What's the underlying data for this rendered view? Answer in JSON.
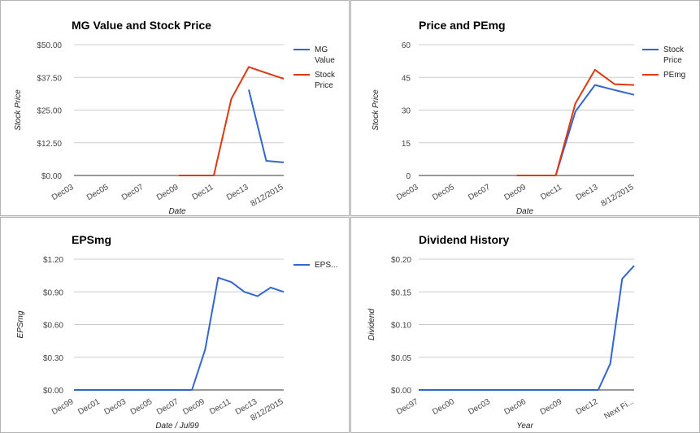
{
  "chart_data": [
    {
      "type": "line",
      "title": "MG Value and Stock Price",
      "xlabel": "Date",
      "ylabel": "Stock Price",
      "x_ticks": [
        "Dec03",
        "Dec05",
        "Dec07",
        "Dec09",
        "Dec11",
        "Dec13",
        "8/12/2015"
      ],
      "y_ticks": [
        "$0.00",
        "$12.50",
        "$25.00",
        "$37.50",
        "$50.00"
      ],
      "ylim": [
        0,
        50
      ],
      "grid": true,
      "legend": "right",
      "series": [
        {
          "name": "MG Value",
          "color": "#3366cc",
          "points": [
            [
              10,
              32.8
            ],
            [
              11,
              5.6
            ],
            [
              12,
              5.0
            ]
          ]
        },
        {
          "name": "Stock Price",
          "color": "#dc3912",
          "points": [
            [
              6,
              0
            ],
            [
              7,
              0
            ],
            [
              8,
              0
            ],
            [
              9,
              29.3
            ],
            [
              10,
              41.5
            ],
            [
              11,
              39.2
            ],
            [
              12,
              37.0
            ]
          ]
        }
      ],
      "x_max": 12
    },
    {
      "type": "line",
      "title": "Price and PEmg",
      "xlabel": "Date",
      "ylabel": "Stock Price",
      "x_ticks": [
        "Dec03",
        "Dec05",
        "Dec07",
        "Dec09",
        "Dec11",
        "Dec13",
        "8/12/2015"
      ],
      "y_ticks": [
        "0",
        "15",
        "30",
        "45",
        "60"
      ],
      "ylim": [
        0,
        60
      ],
      "grid": true,
      "legend": "right",
      "series": [
        {
          "name": "Stock Price",
          "color": "#3366cc",
          "points": [
            [
              7,
              0
            ],
            [
              8,
              29.3
            ],
            [
              9,
              41.5
            ],
            [
              10,
              39.2
            ],
            [
              11,
              37.0
            ]
          ]
        },
        {
          "name": "PEmg",
          "color": "#dc3912",
          "points": [
            [
              5,
              0
            ],
            [
              6,
              0
            ],
            [
              7,
              0
            ],
            [
              8,
              33.0
            ],
            [
              9,
              48.5
            ],
            [
              10,
              41.9
            ],
            [
              11,
              41.5
            ]
          ]
        }
      ],
      "x_max": 11
    },
    {
      "type": "line",
      "title": "EPSmg",
      "xlabel": "Date / Jul99",
      "ylabel": "EPSmg",
      "x_ticks": [
        "Dec99",
        "Dec01",
        "Dec03",
        "Dec05",
        "Dec07",
        "Dec09",
        "Dec11",
        "Dec13",
        "8/12/2015"
      ],
      "y_ticks": [
        "$0.00",
        "$0.30",
        "$0.60",
        "$0.90",
        "$1.20"
      ],
      "ylim": [
        0,
        1.2
      ],
      "grid": true,
      "legend": "right",
      "series": [
        {
          "name": "EPS...",
          "color": "#3366cc",
          "points": [
            [
              0,
              0
            ],
            [
              1,
              0
            ],
            [
              2,
              0
            ],
            [
              3,
              0
            ],
            [
              4,
              0
            ],
            [
              5,
              0
            ],
            [
              6,
              0
            ],
            [
              7,
              0
            ],
            [
              8,
              0
            ],
            [
              9,
              0
            ],
            [
              10,
              0.37
            ],
            [
              11,
              1.03
            ],
            [
              12,
              0.99
            ],
            [
              13,
              0.9
            ],
            [
              14,
              0.86
            ],
            [
              15,
              0.94
            ],
            [
              16,
              0.9
            ]
          ]
        }
      ],
      "x_max": 16
    },
    {
      "type": "line",
      "title": "Dividend History",
      "xlabel": "Year",
      "ylabel": "Dividend",
      "x_ticks": [
        "Dec97",
        "Dec00",
        "Dec03",
        "Dec06",
        "Dec09",
        "Dec12",
        "Next Fi..."
      ],
      "y_ticks": [
        "$0.00",
        "$0.05",
        "$0.10",
        "$0.15",
        "$0.20"
      ],
      "ylim": [
        0,
        0.2
      ],
      "grid": true,
      "legend": "none",
      "series": [
        {
          "name": "",
          "color": "#3366cc",
          "points": [
            [
              0,
              0
            ],
            [
              15,
              0
            ],
            [
              16,
              0.04
            ],
            [
              17,
              0.17
            ],
            [
              18,
              0.19
            ]
          ]
        }
      ],
      "x_max": 18
    }
  ]
}
